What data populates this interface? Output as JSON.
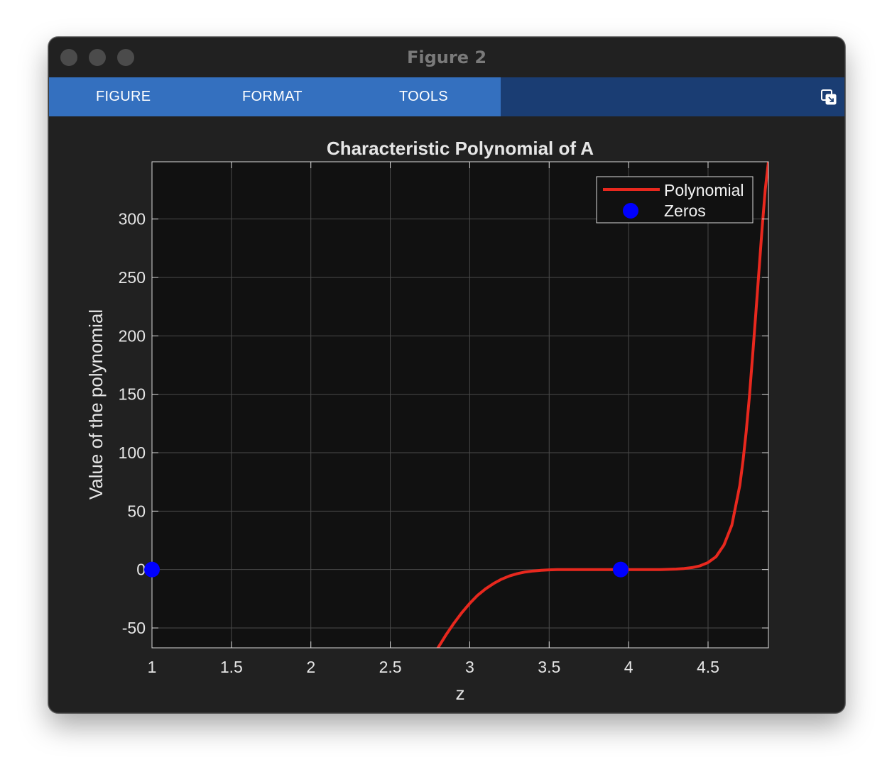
{
  "window": {
    "title": "Figure 2"
  },
  "toolstrip": {
    "tabs": [
      {
        "label": "FIGURE"
      },
      {
        "label": "FORMAT"
      },
      {
        "label": "TOOLS"
      }
    ],
    "undock_icon": "undock-icon"
  },
  "colors": {
    "axes_background": "#111111",
    "polynomial_line": "#e8281e",
    "zeros_marker": "#0000ff",
    "toolstrip_tabs": "#3470bf",
    "toolstrip_bar": "#1a3d73"
  },
  "chart_data": {
    "type": "line",
    "title": "Characteristic Polynomial of A",
    "xlabel": "z",
    "ylabel": "Value of the polynomial",
    "xlim": [
      1,
      4.88
    ],
    "ylim": [
      -67,
      349
    ],
    "xticks": [
      1,
      1.5,
      2,
      2.5,
      3,
      3.5,
      4,
      4.5
    ],
    "xtick_labels": [
      "1",
      "1.5",
      "2",
      "2.5",
      "3",
      "3.5",
      "4",
      "4.5"
    ],
    "yticks": [
      -50,
      0,
      50,
      100,
      150,
      200,
      250,
      300
    ],
    "ytick_labels": [
      "-50",
      "0",
      "50",
      "100",
      "150",
      "200",
      "250",
      "300"
    ],
    "grid": true,
    "legend": {
      "position": "top-right",
      "entries": [
        "Polynomial",
        "Zeros"
      ]
    },
    "series": [
      {
        "name": "Polynomial",
        "style": "line",
        "x": [
          2.8,
          2.85,
          2.9,
          2.95,
          3.0,
          3.05,
          3.1,
          3.15,
          3.2,
          3.25,
          3.3,
          3.35,
          3.4,
          3.45,
          3.5,
          3.55,
          3.6,
          3.7,
          3.8,
          3.9,
          4.0,
          4.1,
          4.2,
          4.3,
          4.35,
          4.4,
          4.45,
          4.5,
          4.55,
          4.6,
          4.65,
          4.7,
          4.72,
          4.74,
          4.76,
          4.78,
          4.8,
          4.82,
          4.84,
          4.86,
          4.88
        ],
        "y": [
          -67,
          -56,
          -46,
          -37,
          -29,
          -22,
          -16.5,
          -12,
          -8.3,
          -5.5,
          -3.5,
          -2.1,
          -1.2,
          -0.6,
          -0.25,
          -0.08,
          0,
          0,
          0,
          0,
          0,
          0,
          0,
          0.4,
          0.9,
          1.7,
          3.2,
          6,
          11,
          21,
          38,
          72,
          93,
          118,
          148,
          182,
          218,
          255,
          292,
          325,
          349
        ]
      },
      {
        "name": "Zeros",
        "style": "markers",
        "x": [
          1.0,
          3.95
        ],
        "y": [
          0,
          0
        ]
      }
    ]
  }
}
